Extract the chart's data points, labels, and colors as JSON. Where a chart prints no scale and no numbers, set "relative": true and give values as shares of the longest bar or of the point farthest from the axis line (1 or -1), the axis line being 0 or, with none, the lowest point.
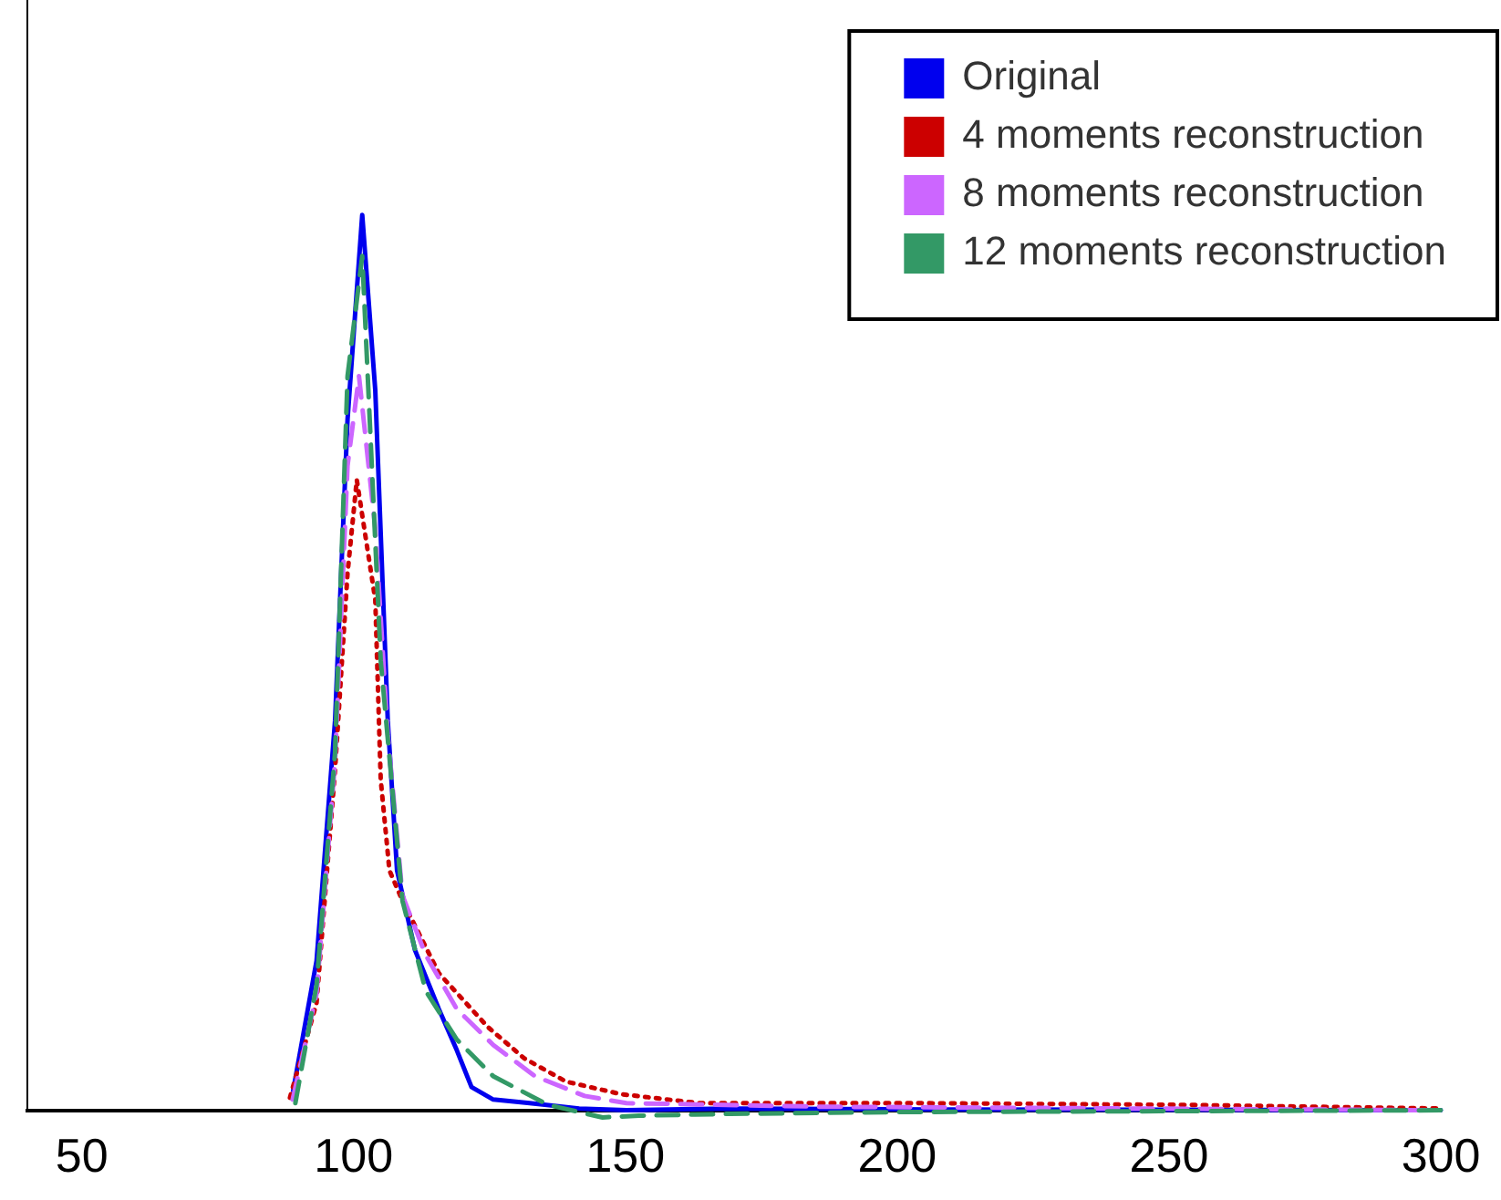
{
  "chart_data": {
    "type": "line",
    "relative": true,
    "xlim": [
      40,
      300
    ],
    "xticks": [
      50,
      100,
      150,
      200,
      250,
      300
    ],
    "grid": false,
    "legend": "top right",
    "marker": "none",
    "series": [
      {
        "name": "Original",
        "color": "#0000ee",
        "line_style": "solid",
        "x": [
          88.9,
          93.2,
          96.6,
          98.9,
          101.6,
          104.0,
          106.3,
          108.0,
          111.3,
          115.7,
          119.0,
          121.7,
          125.7,
          132.4,
          141.5,
          150.2,
          169.3,
          200,
          300
        ],
        "values": [
          0.022,
          0.167,
          0.435,
          0.772,
          1.0,
          0.804,
          0.435,
          0.268,
          0.179,
          0.113,
          0.067,
          0.026,
          0.012,
          0.008,
          0.002,
          0,
          0.002,
          0.001,
          0
        ]
      },
      {
        "name": "4 moments reconstruction",
        "color": "#cc0000",
        "line_style": "dotted",
        "x": [
          88.3,
          93.2,
          96.6,
          98.9,
          100.6,
          104.0,
          105.0,
          106.6,
          109.0,
          115.7,
          124.7,
          131.4,
          139.1,
          149.2,
          163.6,
          202.8,
          253,
          300
        ],
        "values": [
          0.014,
          0.12,
          0.38,
          0.6,
          0.704,
          0.57,
          0.369,
          0.268,
          0.234,
          0.153,
          0.093,
          0.058,
          0.032,
          0.018,
          0.008,
          0.008,
          0.006,
          0.002
        ]
      },
      {
        "name": "8 moments reconstruction",
        "color": "#cc66ff",
        "line_style": "dashed",
        "x": [
          88.8,
          93.2,
          96.6,
          98.9,
          101.0,
          104.0,
          106.3,
          109.0,
          113.3,
          119.0,
          125.7,
          133.4,
          142.5,
          150.2,
          186,
          300
        ],
        "values": [
          0.012,
          0.13,
          0.39,
          0.72,
          0.82,
          0.65,
          0.42,
          0.24,
          0.173,
          0.113,
          0.073,
          0.038,
          0.016,
          0.008,
          0.004,
          0
        ]
      },
      {
        "name": "12 moments reconstruction",
        "color": "#339966",
        "line_style": "dashed",
        "x": [
          89.3,
          93.2,
          96.6,
          98.9,
          101.6,
          105.0,
          109.0,
          113.3,
          119.0,
          125.7,
          135.8,
          145.8,
          152.5,
          169.3,
          200,
          300
        ],
        "values": [
          0.008,
          0.14,
          0.4,
          0.82,
          0.954,
          0.502,
          0.234,
          0.133,
          0.079,
          0.038,
          0.006,
          -0.008,
          -0.006,
          -0.004,
          -0.002,
          0
        ]
      }
    ]
  }
}
